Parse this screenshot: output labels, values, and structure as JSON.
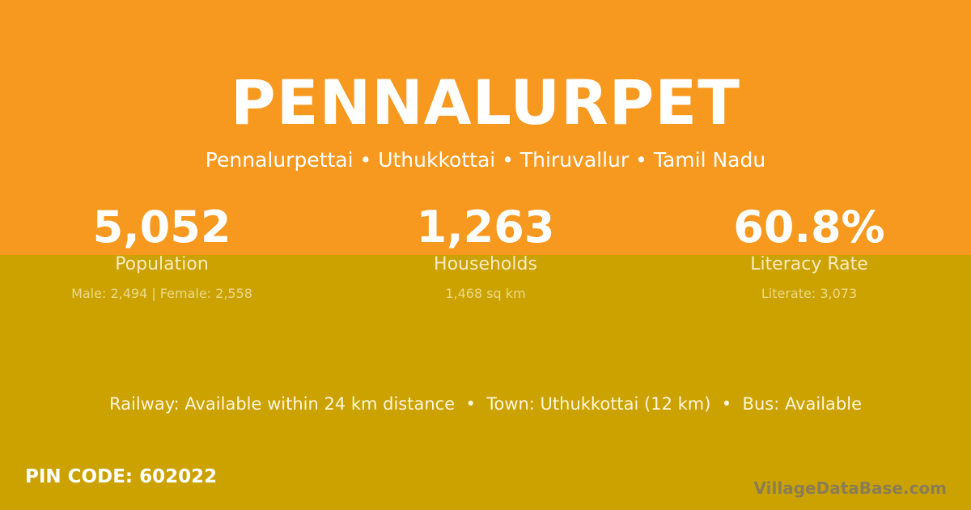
{
  "colors": {
    "top_bg": "#F7981F",
    "bottom_bg": "#CBA200"
  },
  "title": "PENNALURPET",
  "subtitle": "Pennalurpettai • Uthukkottai • Thiruvallur • Tamil Nadu",
  "stats": [
    {
      "value": "5,052",
      "label": "Population",
      "detail": "Male: 2,494 | Female: 2,558"
    },
    {
      "value": "1,263",
      "label": "Households",
      "detail": "1,468 sq km"
    },
    {
      "value": "60.8%",
      "label": "Literacy Rate",
      "detail": "Literate: 3,073"
    }
  ],
  "amenities": "Railway: Available within 24 km distance  •  Town: Uthukkottai (12 km)  •  Bus: Available",
  "pin": "PIN CODE: 602022",
  "brand": "VillageDataBase.com"
}
